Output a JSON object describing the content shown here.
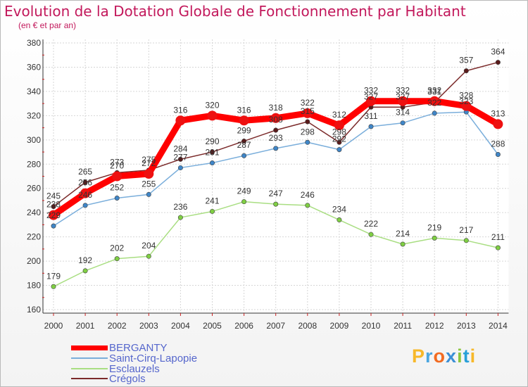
{
  "chart_data": {
    "type": "line",
    "title": "Evolution de la Dotation Globale de Fonctionnement par Habitant",
    "subtitle": "(en € et par an)",
    "xlabel": "",
    "ylabel": "",
    "ylim": [
      160,
      380
    ],
    "y_ticks": [
      160,
      180,
      200,
      220,
      240,
      260,
      280,
      300,
      320,
      340,
      360,
      380
    ],
    "categories": [
      "2000",
      "2001",
      "2002",
      "2003",
      "2004",
      "2005",
      "2006",
      "2007",
      "2008",
      "2009",
      "2010",
      "2011",
      "2012",
      "2013",
      "2014"
    ],
    "grid": true,
    "legend_position": "bottom-left",
    "series": [
      {
        "name": "Crégols",
        "color": "#7b2a2a",
        "marker": "#5a1a1a",
        "values": [
          245,
          265,
          273,
          275,
          284,
          290,
          299,
          308,
          315,
          298,
          327,
          327,
          331,
          357,
          364
        ],
        "labels": [
          "245",
          "265",
          "273",
          "275",
          "284",
          "290",
          "299",
          "308",
          "315",
          "298",
          "327",
          "327",
          "331",
          "357",
          "364"
        ]
      },
      {
        "name": "Esclauzels",
        "color": "#a9de82",
        "marker": "#7fcf43",
        "values": [
          179,
          192,
          202,
          204,
          236,
          241,
          249,
          247,
          246,
          234,
          222,
          214,
          219,
          217,
          211
        ],
        "labels": [
          "179",
          "192",
          "202",
          "204",
          "236",
          "241",
          "249",
          "247",
          "246",
          "234",
          "222",
          "214",
          "219",
          "217",
          "211"
        ]
      },
      {
        "name": "Saint-Cirq-Lapopie",
        "color": "#7aaedb",
        "marker": "#3f86c8",
        "values": [
          229,
          246,
          252,
          255,
          277,
          281,
          287,
          293,
          298,
          292,
          311,
          314,
          322,
          323,
          288
        ],
        "labels": [
          "229",
          "246",
          "252",
          "255",
          "277",
          "281",
          "287",
          "293",
          "298",
          "292",
          "311",
          "314",
          "322",
          "323",
          "288"
        ]
      },
      {
        "name": "BERGANTY",
        "color": "#ff0000",
        "marker": "#ee1111",
        "values": [
          238,
          256,
          270,
          272,
          316,
          320,
          316,
          318,
          322,
          312,
          332,
          332,
          332,
          328,
          313
        ],
        "labels": [
          "238",
          "256",
          "270",
          "272",
          "316",
          "320",
          "316",
          "318",
          "322",
          "312",
          "332",
          "332",
          "332",
          "328",
          "313"
        ]
      }
    ]
  },
  "legend": [
    {
      "label": "BERGANTY",
      "color": "#ff0000"
    },
    {
      "label": "Saint-Cirq-Lapopie",
      "color": "#7aaedb"
    },
    {
      "label": "Esclauzels",
      "color": "#a9de82"
    },
    {
      "label": "Crégols",
      "color": "#7b2a2a"
    }
  ],
  "brand": {
    "letters": [
      "P",
      "r",
      "o",
      "x",
      "i",
      "t",
      "i"
    ],
    "colors": [
      "#f7b82a",
      "#4aa6e0",
      "#f26b21",
      "#3b8fd6",
      "#8cc63f",
      "#29a0d8",
      "#f7b82a"
    ]
  }
}
